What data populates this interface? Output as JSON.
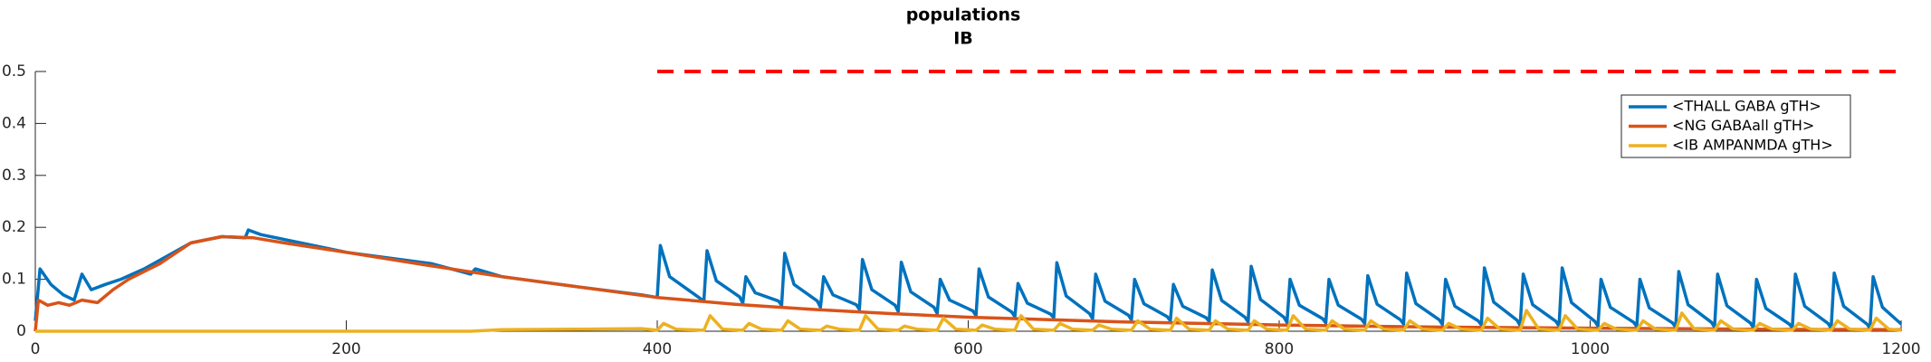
{
  "chart_data": {
    "type": "line",
    "title": "populations",
    "subtitle": "IB",
    "xlim": [
      0,
      1200
    ],
    "ylim": [
      0,
      0.5
    ],
    "xticks": [
      0,
      200,
      400,
      600,
      800,
      1000,
      1200
    ],
    "yticks": [
      0,
      0.1,
      0.2,
      0.3,
      0.4,
      0.5
    ],
    "legend": "top-right",
    "reference_line": {
      "x": [
        400,
        1200
      ],
      "y": 0.5,
      "color": "#ff0000",
      "style": "dashed"
    },
    "series": [
      {
        "name": "<THALL GABA gTH>",
        "color": "#0072bd",
        "x": [
          0,
          3,
          10,
          18,
          25,
          30,
          36,
          45,
          55,
          70,
          100,
          120,
          135,
          137,
          145,
          200,
          255,
          280,
          283,
          300,
          350,
          390,
          400,
          402,
          408,
          423,
          430,
          432,
          438,
          453,
          455,
          457,
          463,
          478,
          480,
          482,
          488,
          503,
          505,
          507,
          513,
          528,
          530,
          532,
          538,
          553,
          555,
          557,
          563,
          578,
          580,
          582,
          588,
          603,
          605,
          607,
          613,
          628,
          630,
          632,
          638,
          653,
          655,
          657,
          663,
          678,
          680,
          682,
          688,
          703,
          705,
          707,
          713,
          728,
          730,
          732,
          738,
          753,
          755,
          757,
          763,
          778,
          780,
          782,
          788,
          803,
          805,
          807,
          813,
          828,
          830,
          832,
          838,
          853,
          855,
          857,
          863,
          878,
          880,
          882,
          888,
          903,
          905,
          907,
          913,
          928,
          930,
          932,
          938,
          953,
          955,
          957,
          963,
          978,
          980,
          982,
          988,
          1003,
          1005,
          1007,
          1013,
          1028,
          1030,
          1032,
          1038,
          1053,
          1055,
          1057,
          1063,
          1078,
          1080,
          1082,
          1088,
          1103,
          1105,
          1107,
          1113,
          1128,
          1130,
          1132,
          1138,
          1153,
          1155,
          1157,
          1163,
          1178,
          1180,
          1182,
          1188,
          1200
        ],
        "values": [
          0.02,
          0.12,
          0.09,
          0.07,
          0.06,
          0.11,
          0.08,
          0.09,
          0.1,
          0.12,
          0.17,
          0.182,
          0.18,
          0.195,
          0.186,
          0.152,
          0.13,
          0.11,
          0.12,
          0.105,
          0.085,
          0.07,
          0.065,
          0.165,
          0.105,
          0.073,
          0.058,
          0.155,
          0.097,
          0.066,
          0.054,
          0.105,
          0.074,
          0.058,
          0.05,
          0.15,
          0.09,
          0.058,
          0.046,
          0.105,
          0.07,
          0.051,
          0.042,
          0.138,
          0.08,
          0.05,
          0.038,
          0.133,
          0.076,
          0.046,
          0.034,
          0.1,
          0.06,
          0.039,
          0.03,
          0.12,
          0.066,
          0.037,
          0.028,
          0.092,
          0.054,
          0.033,
          0.026,
          0.132,
          0.068,
          0.034,
          0.024,
          0.11,
          0.058,
          0.031,
          0.022,
          0.1,
          0.053,
          0.028,
          0.02,
          0.09,
          0.048,
          0.026,
          0.019,
          0.118,
          0.059,
          0.027,
          0.018,
          0.125,
          0.061,
          0.027,
          0.017,
          0.1,
          0.05,
          0.024,
          0.016,
          0.1,
          0.05,
          0.023,
          0.015,
          0.107,
          0.052,
          0.022,
          0.014,
          0.112,
          0.053,
          0.022,
          0.013,
          0.1,
          0.048,
          0.02,
          0.012,
          0.122,
          0.056,
          0.021,
          0.011,
          0.11,
          0.051,
          0.019,
          0.01,
          0.122,
          0.055,
          0.019,
          0.01,
          0.1,
          0.046,
          0.017,
          0.009,
          0.1,
          0.045,
          0.016,
          0.008,
          0.115,
          0.051,
          0.017,
          0.008,
          0.11,
          0.049,
          0.016,
          0.007,
          0.1,
          0.044,
          0.014,
          0.007,
          0.11,
          0.048,
          0.015,
          0.006,
          0.112,
          0.048,
          0.014,
          0.006,
          0.105,
          0.046,
          0.014
        ]
      },
      {
        "name": "<NG GABAall gTH>",
        "color": "#d95319",
        "x": [
          0,
          2,
          8,
          15,
          22,
          30,
          40,
          50,
          60,
          80,
          100,
          120,
          140,
          160,
          200,
          250,
          300,
          350,
          400,
          450,
          500,
          550,
          600,
          700,
          800,
          900,
          1000,
          1100,
          1200
        ],
        "values": [
          0.0,
          0.06,
          0.05,
          0.055,
          0.05,
          0.06,
          0.055,
          0.08,
          0.1,
          0.13,
          0.17,
          0.182,
          0.18,
          0.17,
          0.152,
          0.128,
          0.105,
          0.085,
          0.065,
          0.052,
          0.042,
          0.034,
          0.027,
          0.018,
          0.012,
          0.008,
          0.006,
          0.004,
          0.003
        ]
      },
      {
        "name": "<IB AMPANMDA gTH>",
        "color": "#edb120",
        "x": [
          0,
          280,
          300,
          350,
          390,
          400,
          404,
          412,
          430,
          434,
          442,
          455,
          459,
          467,
          480,
          484,
          492,
          505,
          509,
          517,
          530,
          534,
          542,
          555,
          559,
          567,
          580,
          584,
          592,
          605,
          609,
          617,
          630,
          634,
          642,
          655,
          659,
          667,
          680,
          684,
          692,
          705,
          709,
          717,
          730,
          734,
          742,
          755,
          759,
          767,
          780,
          784,
          792,
          805,
          809,
          817,
          830,
          834,
          842,
          855,
          859,
          867,
          880,
          884,
          892,
          905,
          909,
          917,
          930,
          934,
          942,
          955,
          959,
          967,
          980,
          984,
          992,
          1005,
          1009,
          1017,
          1030,
          1034,
          1042,
          1055,
          1059,
          1067,
          1080,
          1084,
          1092,
          1105,
          1109,
          1117,
          1130,
          1134,
          1142,
          1155,
          1159,
          1167,
          1180,
          1184,
          1192,
          1200
        ],
        "values": [
          0,
          0,
          0.003,
          0.004,
          0.005,
          0.002,
          0.015,
          0.004,
          0.002,
          0.03,
          0.004,
          0.002,
          0.015,
          0.004,
          0.002,
          0.02,
          0.004,
          0.002,
          0.01,
          0.004,
          0.002,
          0.03,
          0.004,
          0.002,
          0.01,
          0.004,
          0.002,
          0.025,
          0.004,
          0.002,
          0.012,
          0.004,
          0.002,
          0.03,
          0.004,
          0.002,
          0.015,
          0.004,
          0.002,
          0.012,
          0.004,
          0.002,
          0.02,
          0.004,
          0.002,
          0.025,
          0.004,
          0.002,
          0.02,
          0.004,
          0.002,
          0.02,
          0.004,
          0.002,
          0.03,
          0.004,
          0.002,
          0.02,
          0.004,
          0.002,
          0.02,
          0.004,
          0.002,
          0.02,
          0.004,
          0.002,
          0.015,
          0.004,
          0.002,
          0.025,
          0.004,
          0.002,
          0.04,
          0.004,
          0.002,
          0.03,
          0.004,
          0.002,
          0.015,
          0.004,
          0.002,
          0.02,
          0.004,
          0.002,
          0.035,
          0.004,
          0.002,
          0.02,
          0.004,
          0.002,
          0.015,
          0.004,
          0.002,
          0.015,
          0.004,
          0.002,
          0.02,
          0.004,
          0.002,
          0.025,
          0.004,
          0.002
        ]
      }
    ]
  }
}
